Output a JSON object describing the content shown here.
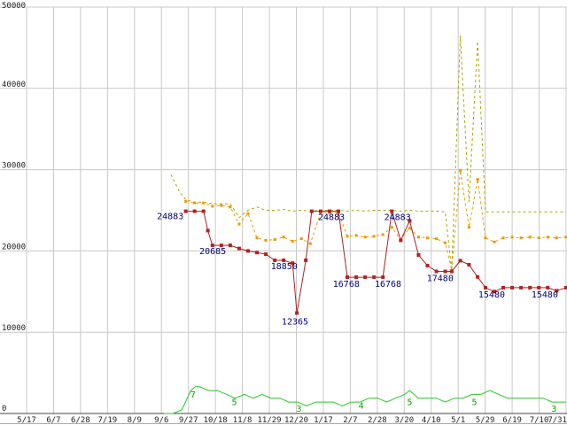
{
  "chart_data": {
    "type": "line",
    "title": "",
    "x_labels": [
      "5/17",
      "6/7",
      "6/28",
      "7/19",
      "8/9",
      "9/6",
      "9/27",
      "10/18",
      "11/8",
      "11/29",
      "12/20",
      "1/17",
      "2/7",
      "2/28",
      "3/20",
      "4/10",
      "5/1",
      "5/29",
      "6/19",
      "7/10",
      "7/31"
    ],
    "ylim": [
      0,
      50000
    ],
    "yticks": [
      0,
      10000,
      20000,
      30000,
      40000,
      50000
    ],
    "grid": true,
    "legend": "none",
    "colors": {
      "grid": "#c8c8c8",
      "axis": "#444444",
      "frame": "#aaaaaa",
      "tick_label": "#222222",
      "price_label": "#000080",
      "count_label": "#00aa00",
      "max_series": "#a8a800",
      "avg_series": "#ee9900",
      "low_series": "#b22222",
      "count_series": "#22cc22"
    },
    "series": [
      {
        "name": "max-price",
        "color": "#a8a800",
        "dash": "3,3",
        "marker": "none",
        "value_scale": 1,
        "points": [
          [
            5.35,
            29400
          ],
          [
            5.68,
            27200
          ],
          [
            5.9,
            26300
          ],
          [
            6.23,
            26000
          ],
          [
            6.56,
            26000
          ],
          [
            6.89,
            25800
          ],
          [
            7.22,
            25800
          ],
          [
            7.55,
            25800
          ],
          [
            7.88,
            24100
          ],
          [
            8.21,
            25000
          ],
          [
            8.54,
            25400
          ],
          [
            8.87,
            25000
          ],
          [
            9.2,
            25000
          ],
          [
            9.53,
            25100
          ],
          [
            9.86,
            24900
          ],
          [
            10.19,
            25000
          ],
          [
            10.52,
            24900
          ],
          [
            10.9,
            25000
          ],
          [
            11.23,
            25000
          ],
          [
            11.56,
            25000
          ],
          [
            11.89,
            24900
          ],
          [
            12.22,
            25000
          ],
          [
            12.55,
            24900
          ],
          [
            12.88,
            25000
          ],
          [
            13.21,
            25000
          ],
          [
            13.54,
            25000
          ],
          [
            13.87,
            24900
          ],
          [
            14.2,
            25000
          ],
          [
            14.53,
            24900
          ],
          [
            14.86,
            24900
          ],
          [
            15.19,
            24900
          ],
          [
            15.52,
            24800
          ],
          [
            15.76,
            17600
          ],
          [
            16.08,
            46500
          ],
          [
            16.4,
            26000
          ],
          [
            16.72,
            45800
          ],
          [
            17.01,
            24800
          ],
          [
            17.34,
            24800
          ],
          [
            17.67,
            24800
          ],
          [
            18.0,
            24800
          ],
          [
            18.33,
            24800
          ],
          [
            18.66,
            24800
          ],
          [
            18.99,
            24800
          ],
          [
            19.32,
            24800
          ],
          [
            19.65,
            24800
          ],
          [
            20.0,
            24800
          ]
        ]
      },
      {
        "name": "avg-price",
        "color": "#ee9900",
        "dash": "3,3",
        "marker": "square",
        "marker_size": 3,
        "value_scale": 1,
        "points": [
          [
            5.9,
            26100
          ],
          [
            6.23,
            25900
          ],
          [
            6.56,
            25900
          ],
          [
            6.89,
            25500
          ],
          [
            7.22,
            25600
          ],
          [
            7.55,
            25400
          ],
          [
            7.88,
            23300
          ],
          [
            8.21,
            24600
          ],
          [
            8.54,
            21600
          ],
          [
            8.87,
            21300
          ],
          [
            9.2,
            21400
          ],
          [
            9.53,
            21700
          ],
          [
            9.86,
            21200
          ],
          [
            10.19,
            21500
          ],
          [
            10.52,
            20900
          ],
          [
            10.9,
            24700
          ],
          [
            11.23,
            24700
          ],
          [
            11.56,
            24700
          ],
          [
            11.89,
            21800
          ],
          [
            12.22,
            21900
          ],
          [
            12.55,
            21700
          ],
          [
            12.88,
            21800
          ],
          [
            13.21,
            22000
          ],
          [
            13.54,
            22900
          ],
          [
            13.87,
            21400
          ],
          [
            14.2,
            22800
          ],
          [
            14.53,
            21700
          ],
          [
            14.86,
            21600
          ],
          [
            15.19,
            21500
          ],
          [
            15.52,
            21000
          ],
          [
            15.76,
            17600
          ],
          [
            16.08,
            29900
          ],
          [
            16.4,
            22900
          ],
          [
            16.72,
            28800
          ],
          [
            17.01,
            21600
          ],
          [
            17.34,
            21100
          ],
          [
            17.67,
            21600
          ],
          [
            18.0,
            21700
          ],
          [
            18.33,
            21600
          ],
          [
            18.66,
            21700
          ],
          [
            18.99,
            21600
          ],
          [
            19.32,
            21700
          ],
          [
            19.65,
            21600
          ],
          [
            20.0,
            21700
          ]
        ]
      },
      {
        "name": "item-count",
        "color": "#22cc22",
        "dash": "",
        "marker": "none",
        "value_scale": 470,
        "points": [
          [
            5.1,
            0
          ],
          [
            5.43,
            0
          ],
          [
            5.76,
            1
          ],
          [
            6.09,
            6
          ],
          [
            6.25,
            7
          ],
          [
            6.42,
            7
          ],
          [
            6.75,
            6
          ],
          [
            7.08,
            6
          ],
          [
            7.41,
            5
          ],
          [
            7.74,
            4
          ],
          [
            8.07,
            5
          ],
          [
            8.4,
            4
          ],
          [
            8.73,
            5
          ],
          [
            9.06,
            4
          ],
          [
            9.39,
            4
          ],
          [
            9.72,
            3
          ],
          [
            10.05,
            3
          ],
          [
            10.38,
            2
          ],
          [
            10.71,
            3
          ],
          [
            11.04,
            3
          ],
          [
            11.37,
            3
          ],
          [
            11.7,
            2
          ],
          [
            12.03,
            3
          ],
          [
            12.36,
            3
          ],
          [
            12.69,
            4
          ],
          [
            13.02,
            4
          ],
          [
            13.35,
            3
          ],
          [
            13.68,
            4
          ],
          [
            14.01,
            5
          ],
          [
            14.2,
            6
          ],
          [
            14.53,
            4
          ],
          [
            14.86,
            4
          ],
          [
            15.19,
            4
          ],
          [
            15.52,
            3
          ],
          [
            15.85,
            4
          ],
          [
            16.18,
            4
          ],
          [
            16.51,
            5
          ],
          [
            16.84,
            5
          ],
          [
            17.17,
            6
          ],
          [
            17.5,
            5
          ],
          [
            17.83,
            4
          ],
          [
            18.16,
            4
          ],
          [
            18.49,
            4
          ],
          [
            18.82,
            4
          ],
          [
            19.15,
            4
          ],
          [
            19.48,
            3
          ],
          [
            19.81,
            3
          ],
          [
            20.0,
            3
          ]
        ]
      },
      {
        "name": "low-price",
        "color": "#b22222",
        "dash": "",
        "marker": "square",
        "marker_size": 4,
        "value_scale": 1,
        "points": [
          [
            5.9,
            24883
          ],
          [
            6.23,
            24883
          ],
          [
            6.56,
            24883
          ],
          [
            6.72,
            22500
          ],
          [
            6.89,
            20685
          ],
          [
            7.22,
            20685
          ],
          [
            7.55,
            20685
          ],
          [
            7.88,
            20300
          ],
          [
            8.21,
            20000
          ],
          [
            8.54,
            19800
          ],
          [
            8.87,
            19600
          ],
          [
            9.2,
            18850
          ],
          [
            9.53,
            18850
          ],
          [
            9.86,
            18500
          ],
          [
            10.02,
            12365
          ],
          [
            10.35,
            18850
          ],
          [
            10.57,
            24883
          ],
          [
            10.9,
            24883
          ],
          [
            11.23,
            24883
          ],
          [
            11.56,
            24883
          ],
          [
            11.89,
            16768
          ],
          [
            12.22,
            16768
          ],
          [
            12.55,
            16768
          ],
          [
            12.88,
            16768
          ],
          [
            13.21,
            16768
          ],
          [
            13.54,
            24883
          ],
          [
            13.87,
            21300
          ],
          [
            14.2,
            23700
          ],
          [
            14.53,
            19500
          ],
          [
            14.86,
            18200
          ],
          [
            15.19,
            17480
          ],
          [
            15.52,
            17480
          ],
          [
            15.76,
            17480
          ],
          [
            16.08,
            18800
          ],
          [
            16.4,
            18300
          ],
          [
            16.72,
            16800
          ],
          [
            17.01,
            15480
          ],
          [
            17.34,
            15000
          ],
          [
            17.67,
            15480
          ],
          [
            18.0,
            15480
          ],
          [
            18.33,
            15480
          ],
          [
            18.66,
            15480
          ],
          [
            18.99,
            15480
          ],
          [
            19.32,
            15480
          ],
          [
            19.65,
            15100
          ],
          [
            20.0,
            15480
          ]
        ]
      }
    ],
    "annotations": [
      {
        "text": "24883",
        "u": 5.82,
        "v": 24883,
        "dy": 9,
        "anchor": "end",
        "color": "#000080"
      },
      {
        "text": "20685",
        "u": 6.9,
        "v": 20685,
        "dy": 10,
        "anchor": "middle",
        "color": "#000080"
      },
      {
        "text": "18850",
        "u": 9.55,
        "v": 18850,
        "dy": 10,
        "anchor": "middle",
        "color": "#000080"
      },
      {
        "text": "12365",
        "u": 9.95,
        "v": 12365,
        "dy": 13,
        "anchor": "middle",
        "color": "#000080"
      },
      {
        "text": "24883",
        "u": 11.3,
        "v": 24883,
        "dy": 10,
        "anchor": "middle",
        "color": "#000080"
      },
      {
        "text": "16768",
        "u": 11.85,
        "v": 16768,
        "dy": 11,
        "anchor": "middle",
        "color": "#000080"
      },
      {
        "text": "16768",
        "u": 13.4,
        "v": 16768,
        "dy": 11,
        "anchor": "middle",
        "color": "#000080"
      },
      {
        "text": "24883",
        "u": 13.75,
        "v": 24883,
        "dy": 10,
        "anchor": "middle",
        "color": "#000080"
      },
      {
        "text": "17480",
        "u": 15.33,
        "v": 17480,
        "dy": 11,
        "anchor": "middle",
        "color": "#000080"
      },
      {
        "text": "15480",
        "u": 17.24,
        "v": 15480,
        "dy": 11,
        "anchor": "middle",
        "color": "#000080"
      },
      {
        "text": "15480",
        "u": 19.21,
        "v": 15480,
        "dy": 11,
        "anchor": "middle",
        "color": "#000080"
      },
      {
        "text": "7",
        "u": 6.17,
        "v": 7,
        "scale": 470,
        "dy": 12,
        "anchor": "middle",
        "color": "#00aa00"
      },
      {
        "text": "5",
        "u": 7.7,
        "v": 5,
        "scale": 470,
        "dy": 12,
        "anchor": "middle",
        "color": "#00aa00"
      },
      {
        "text": "3",
        "u": 10.1,
        "v": 3,
        "scale": 470,
        "dy": 11,
        "anchor": "middle",
        "color": "#00aa00"
      },
      {
        "text": "4",
        "u": 12.4,
        "v": 4,
        "scale": 470,
        "dy": 12,
        "anchor": "middle",
        "color": "#00aa00"
      },
      {
        "text": "5",
        "u": 14.2,
        "v": 5,
        "scale": 470,
        "dy": 12,
        "anchor": "middle",
        "color": "#00aa00"
      },
      {
        "text": "5",
        "u": 16.6,
        "v": 5,
        "scale": 470,
        "dy": 12,
        "anchor": "middle",
        "color": "#00aa00"
      },
      {
        "text": "3",
        "u": 19.55,
        "v": 3,
        "scale": 470,
        "dy": 11,
        "anchor": "middle",
        "color": "#00aa00"
      }
    ]
  }
}
